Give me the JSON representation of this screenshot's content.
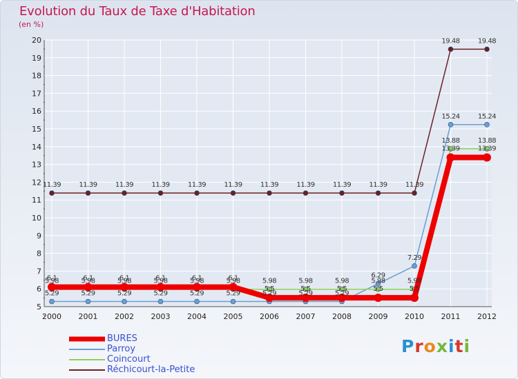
{
  "colors": {
    "title": "#c5174f",
    "grid": "#ffffff",
    "axis_text": "#222222",
    "legend_text": "#3a4fd0"
  },
  "chart_data": {
    "type": "line",
    "title": "Evolution du Taux de Taxe d'Habitation",
    "subtitle": "(en %)",
    "x": [
      "2000",
      "2001",
      "2002",
      "2003",
      "2004",
      "2005",
      "2006",
      "2007",
      "2008",
      "2009",
      "2010",
      "2011",
      "2012"
    ],
    "ylim": [
      5,
      20
    ],
    "yticks": [
      "5",
      "6",
      "7",
      "8",
      "9",
      "10",
      "11",
      "12",
      "13",
      "14",
      "15",
      "16",
      "17",
      "18",
      "19",
      "20"
    ],
    "grid": true,
    "legend_position": "bottom-left",
    "series": [
      {
        "name": "Réchicourt-la-Petite",
        "color": "#6b1f24",
        "values": [
          11.39,
          11.39,
          11.39,
          11.39,
          11.39,
          11.39,
          11.39,
          11.39,
          11.39,
          11.39,
          11.39,
          19.48,
          19.48
        ],
        "labels": [
          "11.39",
          "11.39",
          "11.39",
          "11.39",
          "11.39",
          "11.39",
          "11.39",
          "11.39",
          "11.39",
          "11.39",
          "11.39",
          "19.48",
          "19.48"
        ]
      },
      {
        "name": "Parroy",
        "color": "#6a9ed4",
        "values": [
          5.29,
          5.29,
          5.29,
          5.29,
          5.29,
          5.29,
          5.29,
          5.29,
          5.29,
          6.29,
          7.29,
          15.24,
          15.24
        ],
        "labels": [
          "5.29",
          "5.29",
          "5.29",
          "5.29",
          "5.29",
          "5.29",
          "5.29",
          "5.29",
          "5.29",
          "6.29",
          "7.29",
          "15.24",
          "15.24"
        ]
      },
      {
        "name": "Coincourt",
        "color": "#8ed05a",
        "values": [
          5.98,
          5.98,
          5.98,
          5.98,
          5.98,
          5.98,
          5.98,
          5.98,
          5.98,
          5.98,
          5.98,
          13.88,
          13.88
        ],
        "labels": [
          "5.98",
          "5.98",
          "5.98",
          "5.98",
          "5.98",
          "5.98",
          "5.98",
          "5.98",
          "5.98",
          "5.98",
          "5.98",
          "13.88",
          "13.88"
        ]
      },
      {
        "name": "BURES",
        "color": "#ee0000",
        "values": [
          6.1,
          6.1,
          6.1,
          6.1,
          6.1,
          6.1,
          5.5,
          5.5,
          5.5,
          5.5,
          5.5,
          13.39,
          13.39
        ],
        "labels": [
          "6.1",
          "6.1",
          "6.1",
          "6.1",
          "6.1",
          "6.1",
          "5.5",
          "5.5",
          "5.5",
          "5.5",
          "5.5",
          "13.39",
          "13.39"
        ]
      }
    ],
    "legend": [
      {
        "name": "BURES",
        "color": "#ee0000",
        "width": 7
      },
      {
        "name": "Parroy",
        "color": "#6a9ed4",
        "width": 2
      },
      {
        "name": "Coincourt",
        "color": "#8ed05a",
        "width": 2
      },
      {
        "name": "Réchicourt-la-Petite",
        "color": "#6b1f24",
        "width": 2
      }
    ]
  },
  "logo": {
    "text": "Proxiti"
  }
}
